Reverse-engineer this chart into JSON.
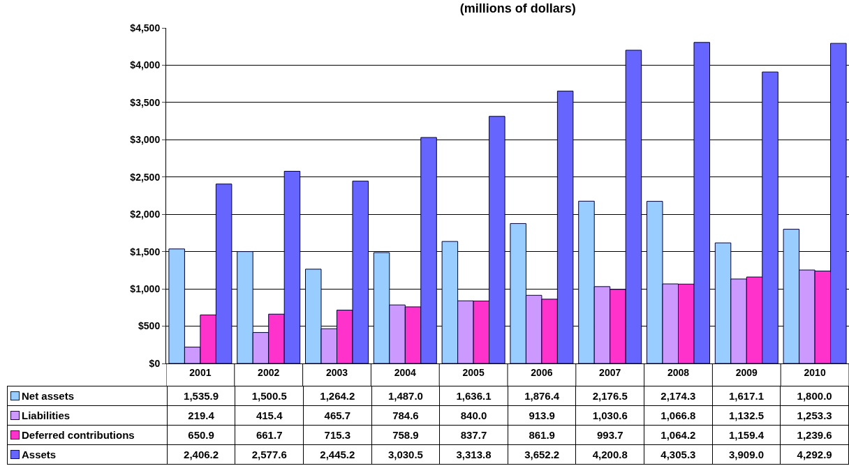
{
  "chart_data": {
    "type": "bar",
    "title": "(millions of dollars)",
    "categories": [
      "2001",
      "2002",
      "2003",
      "2004",
      "2005",
      "2006",
      "2007",
      "2008",
      "2009",
      "2010"
    ],
    "series": [
      {
        "name": "Net assets",
        "color": "#99ccff",
        "values": [
          1535.9,
          1500.5,
          1264.2,
          1487.0,
          1636.1,
          1876.4,
          2176.5,
          2174.3,
          1617.1,
          1800.0
        ],
        "value_labels": [
          "1,535.9",
          "1,500.5",
          "1,264.2",
          "1,487.0",
          "1,636.1",
          "1,876.4",
          "2,176.5",
          "2,174.3",
          "1,617.1",
          "1,800.0"
        ]
      },
      {
        "name": "Liabilities",
        "color": "#cc99ff",
        "values": [
          219.4,
          415.4,
          465.7,
          784.6,
          840.0,
          913.9,
          1030.6,
          1066.8,
          1132.5,
          1253.3
        ],
        "value_labels": [
          "219.4",
          "415.4",
          "465.7",
          "784.6",
          "840.0",
          "913.9",
          "1,030.6",
          "1,066.8",
          "1,132.5",
          "1,253.3"
        ]
      },
      {
        "name": "Deferred contributions",
        "color": "#ff33cc",
        "values": [
          650.9,
          661.7,
          715.3,
          758.9,
          837.7,
          861.9,
          993.7,
          1064.2,
          1159.4,
          1239.6
        ],
        "value_labels": [
          "650.9",
          "661.7",
          "715.3",
          "758.9",
          "837.7",
          "861.9",
          "993.7",
          "1,064.2",
          "1,159.4",
          "1,239.6"
        ]
      },
      {
        "name": "Assets",
        "color": "#6666ff",
        "values": [
          2406.2,
          2577.6,
          2445.2,
          3030.5,
          3313.8,
          3652.2,
          4200.8,
          4305.3,
          3909.0,
          4292.9
        ],
        "value_labels": [
          "2,406.2",
          "2,577.6",
          "2,445.2",
          "3,030.5",
          "3,313.8",
          "3,652.2",
          "4,200.8",
          "4,305.3",
          "3,909.0",
          "4,292.9"
        ]
      }
    ],
    "ylim": [
      0,
      4500
    ],
    "yticks": [
      {
        "value": 0,
        "label": "$0"
      },
      {
        "value": 500,
        "label": "$500"
      },
      {
        "value": 1000,
        "label": "$1,000"
      },
      {
        "value": 1500,
        "label": "$1,500"
      },
      {
        "value": 2000,
        "label": "$2,000"
      },
      {
        "value": 2500,
        "label": "$2,500"
      },
      {
        "value": 3000,
        "label": "$3,000"
      },
      {
        "value": 3500,
        "label": "$3,500"
      },
      {
        "value": 4000,
        "label": "$4,000"
      },
      {
        "value": 4500,
        "label": "$4,500"
      }
    ],
    "grid": "y",
    "legend": "bottom"
  }
}
